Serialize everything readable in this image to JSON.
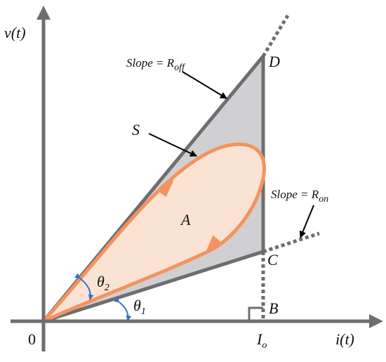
{
  "axes": {
    "y_label": "v(t)",
    "x_label": "i(t)",
    "origin": "0",
    "current": {
      "base": "I",
      "sub": "o"
    }
  },
  "points": {
    "b": "B",
    "c": "C",
    "d": "D"
  },
  "regions": {
    "area": "A",
    "boundary": "S"
  },
  "slopes": {
    "off": {
      "base": "Slope = R",
      "sub": "off"
    },
    "on": {
      "base": "Slope = R",
      "sub": "on"
    }
  },
  "angles": {
    "theta1": {
      "base": "θ",
      "sub": "1"
    },
    "theta2": {
      "base": "θ",
      "sub": "2"
    }
  }
}
